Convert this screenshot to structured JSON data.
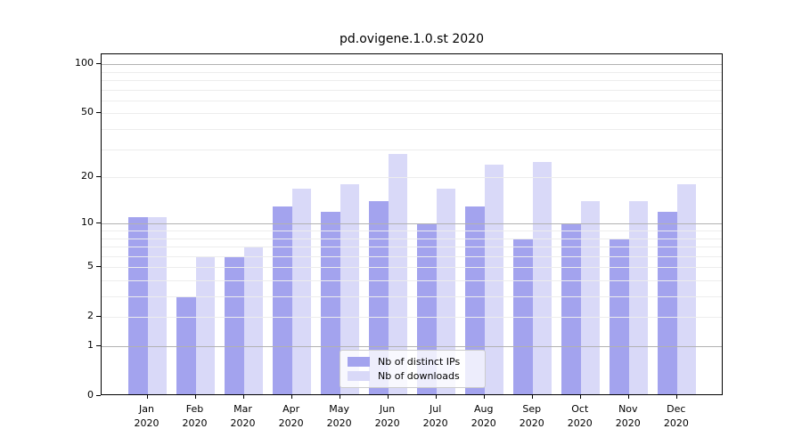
{
  "title": "pd.ovigene.1.0.st 2020",
  "year": "2020",
  "colors": {
    "bar_distinct_ips": "#a3a3ee",
    "bar_downloads": "#d9d9f8",
    "grid_minor": "#ededed",
    "grid_major": "#b2b2b2",
    "axis": "#000000",
    "background": "#ffffff"
  },
  "chart_data": {
    "type": "bar",
    "title": "pd.ovigene.1.0.st 2020",
    "categories": [
      "Jan 2020",
      "Feb 2020",
      "Mar 2020",
      "Apr 2020",
      "May 2020",
      "Jun 2020",
      "Jul 2020",
      "Aug 2020",
      "Sep 2020",
      "Oct 2020",
      "Nov 2020",
      "Dec 2020"
    ],
    "series": [
      {
        "name": "Nb of distinct IPs",
        "color": "#a3a3ee",
        "values": [
          11,
          3,
          6,
          13,
          12,
          14,
          10,
          13,
          8,
          10,
          8,
          12
        ]
      },
      {
        "name": "Nb of downloads",
        "color": "#d9d9f8",
        "values": [
          11,
          6,
          7,
          17,
          18,
          28,
          17,
          24,
          25,
          14,
          14,
          18
        ]
      }
    ],
    "xlabel": "",
    "ylabel": "",
    "yscale": "log10(1+x)",
    "ylim": [
      0,
      115
    ],
    "yticks": [
      100,
      50,
      20,
      10,
      5,
      2,
      1,
      0
    ],
    "grid": {
      "orientation": "horizontal",
      "minor_values": [
        2,
        3,
        4,
        5,
        6,
        7,
        8,
        9,
        20,
        30,
        40,
        50,
        60,
        70,
        80,
        90
      ],
      "major_values": [
        1,
        10,
        100
      ]
    },
    "legend_position": "inside lower-center"
  }
}
